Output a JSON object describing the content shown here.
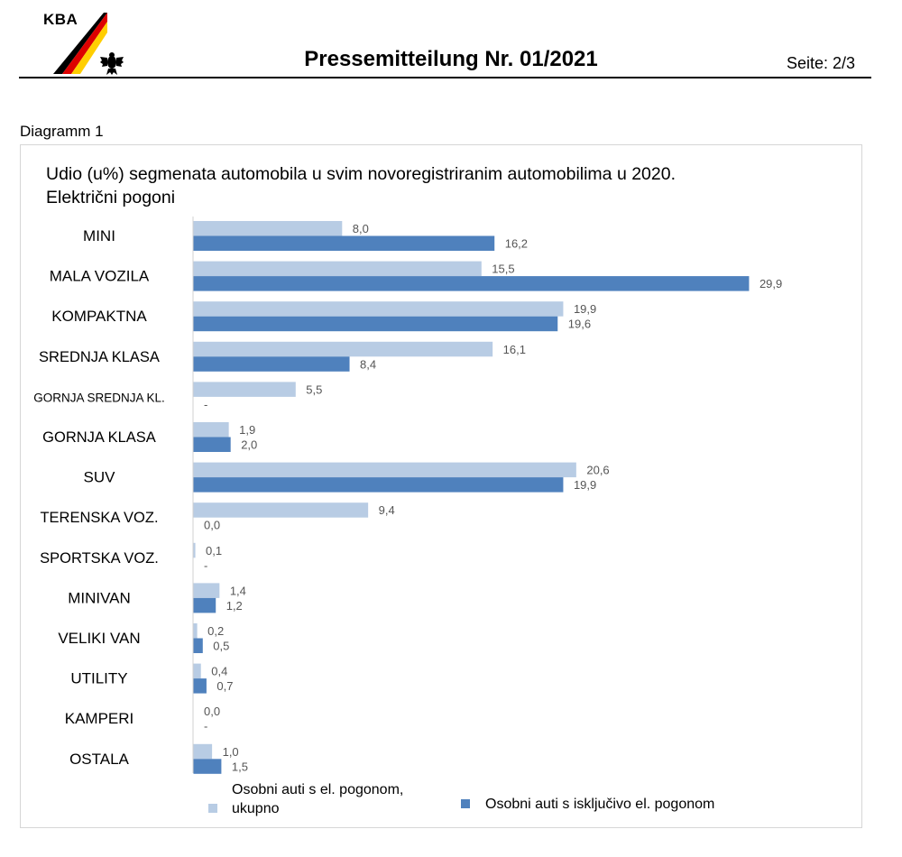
{
  "header": {
    "logo_text": "KBA",
    "title": "Pressemitteilung Nr. 01/2021",
    "page": "Seite: 2/3"
  },
  "diagram_label": "Diagramm 1",
  "colors": {
    "series1": "#b8cce4",
    "series2": "#4f81bd",
    "axis": "#d0d0d0"
  },
  "chart_data": {
    "type": "bar",
    "orientation": "horizontal",
    "title": "Udio (u%) segmenata automobila u svim novoregistriranim automobilima u 2020.",
    "subtitle": "Električni pogoni",
    "categories": [
      "MINI",
      "MALA VOZILA",
      "KOMPAKTNA",
      "SREDNJA KLASA",
      "GORNJA SREDNJA KL.",
      "GORNJA KLASA",
      "SUV",
      "TERENSKA VOZ.",
      "SPORTSKA VOZ.",
      "MINIVAN",
      "VELIKI VAN",
      "UTILITY",
      "KAMPERI",
      "OSTALA"
    ],
    "series": [
      {
        "name": "Osobni auti s el. pogonom, ukupno",
        "values": [
          8.0,
          15.5,
          19.9,
          16.1,
          5.5,
          1.9,
          20.6,
          9.4,
          0.1,
          1.4,
          0.2,
          0.4,
          0.0,
          1.0
        ],
        "labels": [
          "8,0",
          "15,5",
          "19,9",
          "16,1",
          "5,5",
          "1,9",
          "20,6",
          "9,4",
          "0,1",
          "1,4",
          "0,2",
          "0,4",
          "0,0",
          "1,0"
        ]
      },
      {
        "name": "Osobni auti s isključivo el. pogonom",
        "values": [
          16.2,
          29.9,
          19.6,
          8.4,
          0,
          2.0,
          19.9,
          0.0,
          0,
          1.2,
          0.5,
          0.7,
          0,
          1.5
        ],
        "labels": [
          "16,2",
          "29,9",
          "19,6",
          "8,4",
          "-",
          "2,0",
          "19,9",
          "0,0",
          "-",
          "1,2",
          "0,5",
          "0,7",
          "-",
          "1,5"
        ]
      }
    ],
    "xlim": [
      0,
      30
    ],
    "grid": false,
    "legend_position": "bottom"
  }
}
